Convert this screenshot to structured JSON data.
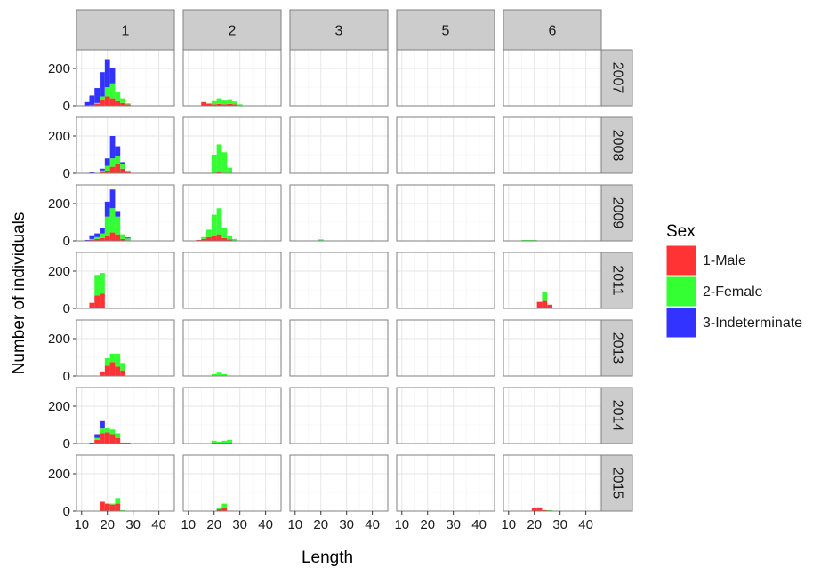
{
  "chart_data": {
    "type": "bar",
    "subtype": "faceted stacked histogram",
    "xlabel": "Length",
    "ylabel": "Number of individuals",
    "xlim": [
      8,
      46
    ],
    "ylim": [
      0,
      300
    ],
    "x_ticks": [
      10,
      20,
      30,
      40
    ],
    "y_ticks": [
      0,
      200
    ],
    "bin_width": 2,
    "grid": true,
    "legend_position": "right",
    "column_facets": [
      "1",
      "2",
      "3",
      "5",
      "6"
    ],
    "row_facets": [
      "2007",
      "2008",
      "2009",
      "2011",
      "2013",
      "2014",
      "2015"
    ],
    "legend": {
      "title": "Sex",
      "items": [
        {
          "label": "1-Male",
          "color": "#ff3333"
        },
        {
          "label": "2-Female",
          "color": "#33ff33"
        },
        {
          "label": "3-Indeterminate",
          "color": "#3333ff"
        }
      ]
    },
    "series_order": [
      "1-Male",
      "2-Female",
      "3-Indeterminate"
    ],
    "panels": [
      {
        "row": "2007",
        "col": "1",
        "bins": [
          {
            "x": 12,
            "values": [
              0,
              0,
              20
            ]
          },
          {
            "x": 14,
            "values": [
              5,
              0,
              50
            ]
          },
          {
            "x": 16,
            "values": [
              10,
              5,
              80
            ]
          },
          {
            "x": 18,
            "values": [
              30,
              20,
              130
            ]
          },
          {
            "x": 20,
            "values": [
              50,
              50,
              150
            ]
          },
          {
            "x": 22,
            "values": [
              40,
              80,
              80
            ]
          },
          {
            "x": 24,
            "values": [
              25,
              50,
              0
            ]
          },
          {
            "x": 26,
            "values": [
              15,
              25,
              0
            ]
          },
          {
            "x": 28,
            "values": [
              8,
              5,
              0
            ]
          }
        ]
      },
      {
        "row": "2007",
        "col": "2",
        "bins": [
          {
            "x": 16,
            "values": [
              20,
              0,
              0
            ]
          },
          {
            "x": 18,
            "values": [
              10,
              5,
              0
            ]
          },
          {
            "x": 20,
            "values": [
              8,
              17,
              0
            ]
          },
          {
            "x": 22,
            "values": [
              10,
              30,
              0
            ]
          },
          {
            "x": 24,
            "values": [
              8,
              20,
              0
            ]
          },
          {
            "x": 26,
            "values": [
              10,
              25,
              0
            ]
          },
          {
            "x": 28,
            "values": [
              8,
              15,
              0
            ]
          },
          {
            "x": 30,
            "values": [
              3,
              5,
              0
            ]
          }
        ]
      },
      {
        "row": "2008",
        "col": "1",
        "bins": [
          {
            "x": 14,
            "values": [
              0,
              0,
              5
            ]
          },
          {
            "x": 18,
            "values": [
              5,
              10,
              10
            ]
          },
          {
            "x": 20,
            "values": [
              15,
              25,
              40
            ]
          },
          {
            "x": 22,
            "values": [
              35,
              45,
              120
            ]
          },
          {
            "x": 24,
            "values": [
              50,
              45,
              50
            ]
          },
          {
            "x": 26,
            "values": [
              25,
              25,
              10
            ]
          },
          {
            "x": 28,
            "values": [
              8,
              7,
              0
            ]
          }
        ]
      },
      {
        "row": "2008",
        "col": "2",
        "bins": [
          {
            "x": 20,
            "values": [
              0,
              100,
              0
            ]
          },
          {
            "x": 22,
            "values": [
              5,
              150,
              0
            ]
          },
          {
            "x": 24,
            "values": [
              3,
              110,
              0
            ]
          },
          {
            "x": 26,
            "values": [
              0,
              30,
              0
            ]
          }
        ]
      },
      {
        "row": "2009",
        "col": "1",
        "bins": [
          {
            "x": 12,
            "values": [
              0,
              0,
              5
            ]
          },
          {
            "x": 14,
            "values": [
              5,
              5,
              20
            ]
          },
          {
            "x": 16,
            "values": [
              10,
              10,
              20
            ]
          },
          {
            "x": 18,
            "values": [
              15,
              25,
              30
            ]
          },
          {
            "x": 20,
            "values": [
              30,
              100,
              80
            ]
          },
          {
            "x": 22,
            "values": [
              45,
              130,
              100
            ]
          },
          {
            "x": 24,
            "values": [
              35,
              95,
              30
            ]
          },
          {
            "x": 26,
            "values": [
              10,
              25,
              0
            ]
          },
          {
            "x": 28,
            "values": [
              3,
              10,
              5
            ]
          }
        ]
      },
      {
        "row": "2009",
        "col": "2",
        "bins": [
          {
            "x": 14,
            "values": [
              5,
              0,
              0
            ]
          },
          {
            "x": 16,
            "values": [
              10,
              10,
              0
            ]
          },
          {
            "x": 18,
            "values": [
              20,
              40,
              0
            ]
          },
          {
            "x": 20,
            "values": [
              30,
              110,
              0
            ]
          },
          {
            "x": 22,
            "values": [
              35,
              140,
              0
            ]
          },
          {
            "x": 24,
            "values": [
              15,
              55,
              0
            ]
          },
          {
            "x": 26,
            "values": [
              8,
              20,
              0
            ]
          },
          {
            "x": 28,
            "values": [
              0,
              10,
              0
            ]
          }
        ]
      },
      {
        "row": "2009",
        "col": "3",
        "bins": [
          {
            "x": 20,
            "values": [
              0,
              8,
              0
            ]
          }
        ]
      },
      {
        "row": "2009",
        "col": "6",
        "bins": [
          {
            "x": 16,
            "values": [
              0,
              5,
              0
            ]
          },
          {
            "x": 18,
            "values": [
              0,
              5,
              0
            ]
          },
          {
            "x": 20,
            "values": [
              0,
              5,
              0
            ]
          }
        ]
      },
      {
        "row": "2011",
        "col": "1",
        "bins": [
          {
            "x": 14,
            "values": [
              30,
              0,
              0
            ]
          },
          {
            "x": 16,
            "values": [
              70,
              110,
              0
            ]
          },
          {
            "x": 18,
            "values": [
              80,
              110,
              0
            ]
          }
        ]
      },
      {
        "row": "2011",
        "col": "6",
        "bins": [
          {
            "x": 22,
            "values": [
              35,
              0,
              0
            ]
          },
          {
            "x": 24,
            "values": [
              40,
              50,
              0
            ]
          },
          {
            "x": 26,
            "values": [
              20,
              0,
              0
            ]
          }
        ]
      },
      {
        "row": "2013",
        "col": "1",
        "bins": [
          {
            "x": 18,
            "values": [
              20,
              5,
              0
            ]
          },
          {
            "x": 20,
            "values": [
              55,
              40,
              0
            ]
          },
          {
            "x": 22,
            "values": [
              75,
              45,
              0
            ]
          },
          {
            "x": 24,
            "values": [
              50,
              70,
              0
            ]
          },
          {
            "x": 26,
            "values": [
              30,
              40,
              0
            ]
          }
        ]
      },
      {
        "row": "2013",
        "col": "2",
        "bins": [
          {
            "x": 20,
            "values": [
              0,
              10,
              0
            ]
          },
          {
            "x": 22,
            "values": [
              3,
              15,
              0
            ]
          },
          {
            "x": 24,
            "values": [
              0,
              10,
              0
            ]
          }
        ]
      },
      {
        "row": "2014",
        "col": "1",
        "bins": [
          {
            "x": 14,
            "values": [
              0,
              0,
              5
            ]
          },
          {
            "x": 16,
            "values": [
              20,
              10,
              20
            ]
          },
          {
            "x": 18,
            "values": [
              55,
              25,
              40
            ]
          },
          {
            "x": 20,
            "values": [
              60,
              25,
              0
            ]
          },
          {
            "x": 22,
            "values": [
              50,
              25,
              0
            ]
          },
          {
            "x": 24,
            "values": [
              30,
              25,
              0
            ]
          },
          {
            "x": 26,
            "values": [
              5,
              0,
              0
            ]
          },
          {
            "x": 28,
            "values": [
              5,
              0,
              0
            ]
          }
        ]
      },
      {
        "row": "2014",
        "col": "2",
        "bins": [
          {
            "x": 20,
            "values": [
              5,
              10,
              0
            ]
          },
          {
            "x": 22,
            "values": [
              5,
              5,
              0
            ]
          },
          {
            "x": 24,
            "values": [
              5,
              10,
              0
            ]
          },
          {
            "x": 26,
            "values": [
              5,
              15,
              0
            ]
          }
        ]
      },
      {
        "row": "2015",
        "col": "1",
        "bins": [
          {
            "x": 18,
            "values": [
              50,
              0,
              0
            ]
          },
          {
            "x": 20,
            "values": [
              40,
              0,
              0
            ]
          },
          {
            "x": 22,
            "values": [
              35,
              5,
              0
            ]
          },
          {
            "x": 24,
            "values": [
              40,
              30,
              0
            ]
          },
          {
            "x": 26,
            "values": [
              0,
              5,
              0
            ]
          }
        ]
      },
      {
        "row": "2015",
        "col": "2",
        "bins": [
          {
            "x": 22,
            "values": [
              10,
              5,
              0
            ]
          },
          {
            "x": 24,
            "values": [
              20,
              20,
              0
            ]
          }
        ]
      },
      {
        "row": "2015",
        "col": "6",
        "bins": [
          {
            "x": 20,
            "values": [
              15,
              0,
              0
            ]
          },
          {
            "x": 22,
            "values": [
              20,
              0,
              0
            ]
          },
          {
            "x": 24,
            "values": [
              5,
              0,
              0
            ]
          },
          {
            "x": 26,
            "values": [
              0,
              5,
              0
            ]
          }
        ]
      }
    ]
  }
}
